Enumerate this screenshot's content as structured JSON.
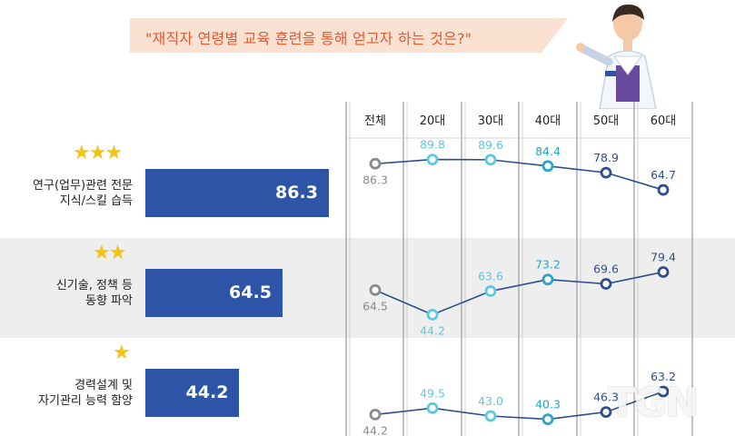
{
  "question": "\"재직자 연령별 교육 훈련을 통해 얻고자 하는 것은?\"",
  "watermark": "TGN",
  "colors": {
    "bar": "#2e54a8",
    "total": "#8a8a8a",
    "light": "#5cc8e0",
    "mid": "#2aa3c5",
    "dark": "#2e4f8c",
    "star": "#f3c316",
    "bubble": "#fbe1d2",
    "bubble_text": "#e05a33"
  },
  "chart_data": {
    "type": "bar+line",
    "categories": [
      "연구(업무)관련 전문\n지식/스킬 습득",
      "신기술, 정책 등\n동향 파악",
      "경력설계 및\n자기관리 능력 함양"
    ],
    "stars": [
      3,
      2,
      1
    ],
    "totals": [
      86.3,
      64.5,
      44.2
    ],
    "age_groups": [
      "전체",
      "20대",
      "30대",
      "40대",
      "50대",
      "60대"
    ],
    "age_values": [
      [
        86.3,
        89.8,
        89.6,
        84.4,
        78.9,
        64.7
      ],
      [
        64.5,
        44.2,
        63.6,
        73.2,
        69.6,
        79.4
      ],
      [
        44.2,
        49.5,
        43.0,
        40.3,
        46.3,
        63.2
      ]
    ]
  }
}
